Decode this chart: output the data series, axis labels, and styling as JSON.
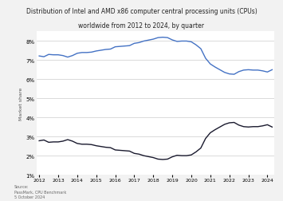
{
  "title_line1": "Distribution of Intel and AMD x86 computer central processing units (CPUs)",
  "title_line2": "worldwide from 2012 to 2024, by quarter",
  "ylabel": "Market share",
  "source_text": "Source:\nPassMark, CPU Benchmark\n5 October 2024",
  "background_color": "#f2f2f2",
  "plot_bg_color": "#ffffff",
  "grid_color": "#cccccc",
  "intel_color": "#4472c4",
  "amd_color": "#1a1a2e",
  "ylim": [
    0.01,
    0.085
  ],
  "yticks": [
    0.01,
    0.02,
    0.03,
    0.04,
    0.05,
    0.06,
    0.07,
    0.08
  ],
  "intel_data": [
    0.0722,
    0.0718,
    0.073,
    0.0728,
    0.0728,
    0.0724,
    0.0716,
    0.0724,
    0.0736,
    0.074,
    0.074,
    0.0742,
    0.0748,
    0.0752,
    0.0756,
    0.0758,
    0.077,
    0.0772,
    0.0774,
    0.0776,
    0.0788,
    0.0792,
    0.08,
    0.0805,
    0.081,
    0.0818,
    0.082,
    0.0818,
    0.0806,
    0.0798,
    0.08,
    0.08,
    0.0796,
    0.078,
    0.076,
    0.071,
    0.068,
    0.0664,
    0.065,
    0.0636,
    0.0628,
    0.0626,
    0.064,
    0.0648,
    0.065,
    0.0648,
    0.0648,
    0.0644,
    0.0638,
    0.065
  ],
  "amd_data": [
    0.0278,
    0.0282,
    0.027,
    0.0272,
    0.0272,
    0.0276,
    0.0284,
    0.0276,
    0.0264,
    0.026,
    0.026,
    0.0258,
    0.0252,
    0.0248,
    0.0244,
    0.0242,
    0.023,
    0.0228,
    0.0226,
    0.0224,
    0.0212,
    0.0208,
    0.02,
    0.0195,
    0.019,
    0.0182,
    0.018,
    0.0182,
    0.0194,
    0.0202,
    0.02,
    0.02,
    0.0204,
    0.022,
    0.024,
    0.029,
    0.032,
    0.0336,
    0.035,
    0.0364,
    0.0372,
    0.0374,
    0.036,
    0.0352,
    0.035,
    0.0352,
    0.0352,
    0.0356,
    0.0362,
    0.035
  ],
  "n_points": 50
}
